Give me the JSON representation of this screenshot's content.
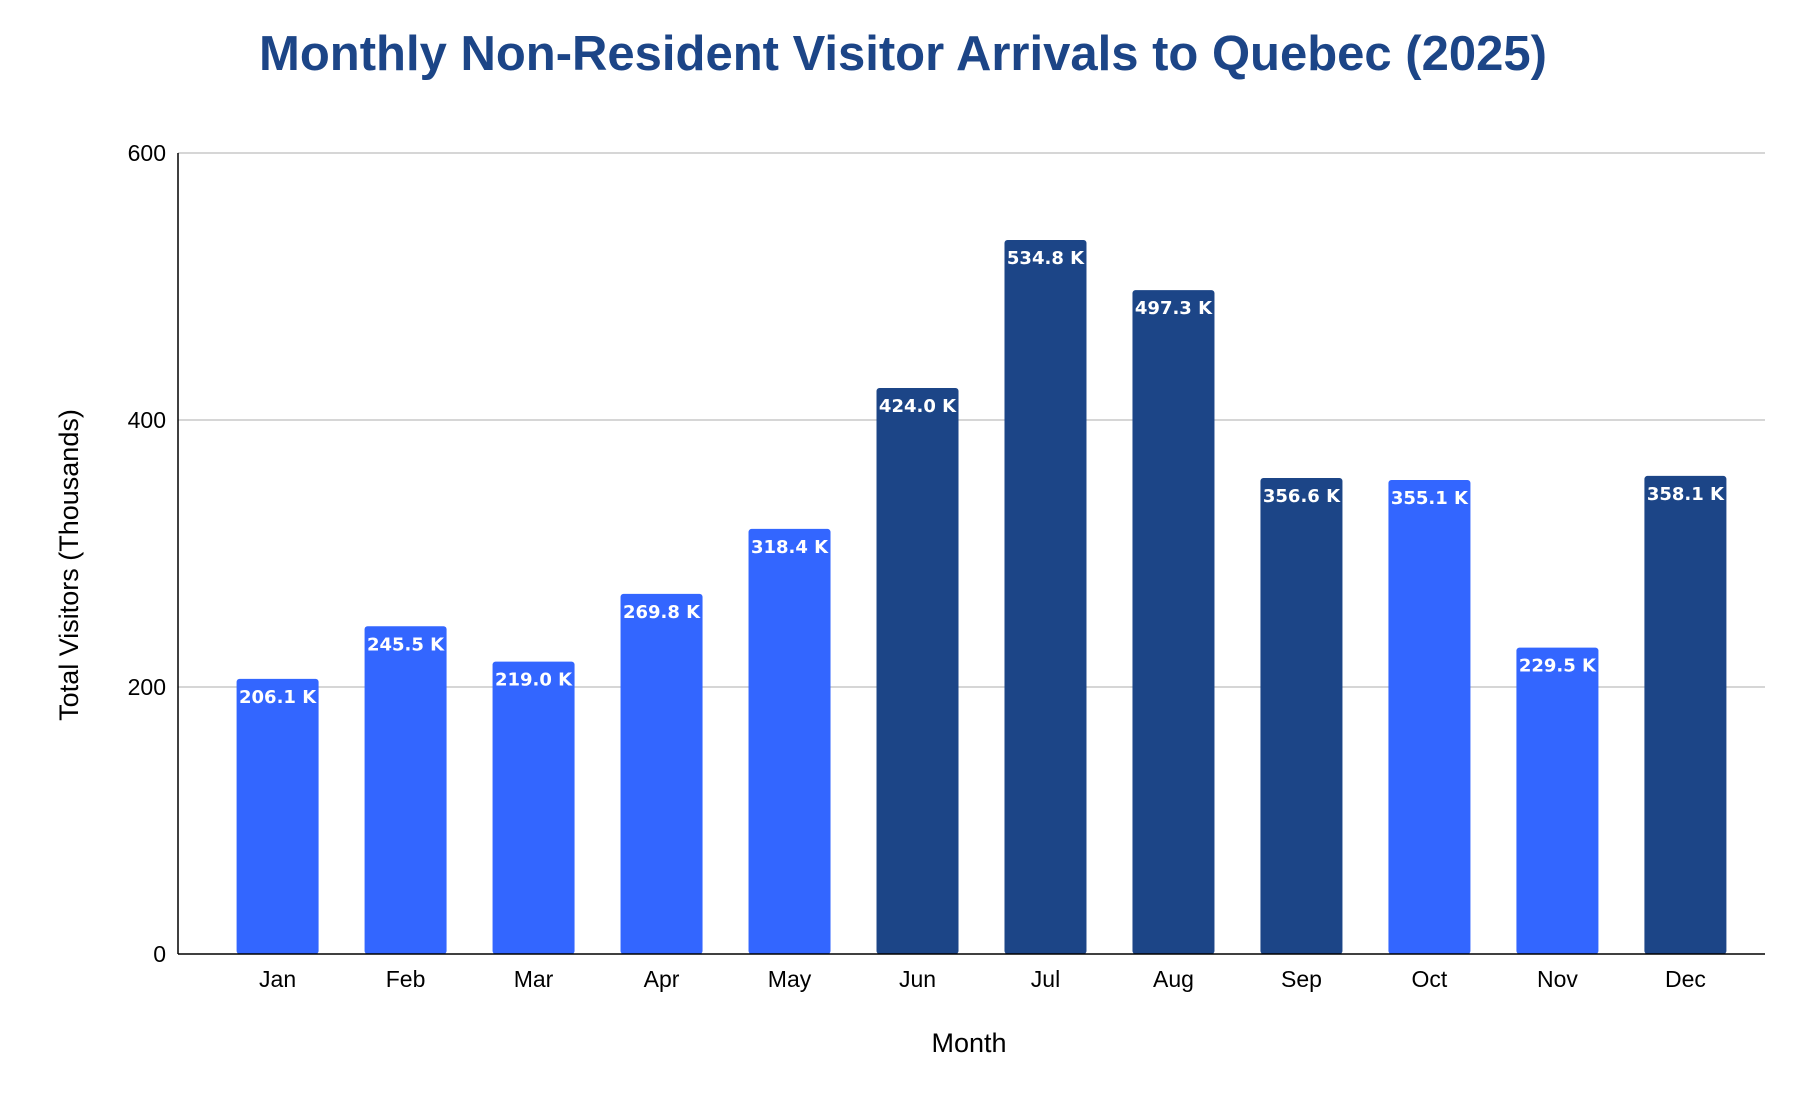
{
  "chart_data": {
    "type": "bar",
    "title": "Monthly Non-Resident Visitor Arrivals to Quebec (2025)",
    "xlabel": "Month",
    "ylabel": "Total Visitors (Thousands)",
    "categories": [
      "Jan",
      "Feb",
      "Mar",
      "Apr",
      "May",
      "Jun",
      "Jul",
      "Aug",
      "Sep",
      "Oct",
      "Nov",
      "Dec"
    ],
    "values": [
      206.1,
      245.5,
      219.0,
      269.8,
      318.4,
      424.0,
      534.8,
      497.3,
      356.6,
      355.1,
      229.5,
      358.1
    ],
    "data_labels": [
      "206.1 K",
      "245.5 K",
      "219.0 K",
      "269.8 K",
      "318.4 K",
      "424.0 K",
      "534.8 K",
      "497.3 K",
      "356.6 K",
      "355.1 K",
      "229.5 K",
      "358.1 K"
    ],
    "bar_colors": [
      "#3366ff",
      "#3366ff",
      "#3366ff",
      "#3366ff",
      "#3366ff",
      "#1c4587",
      "#1c4587",
      "#1c4587",
      "#1c4587",
      "#3366ff",
      "#3366ff",
      "#1c4587"
    ],
    "ylim": [
      0,
      600
    ],
    "yticks": [
      "0",
      "200",
      "400",
      "600"
    ],
    "ytick_values": [
      0,
      200,
      400,
      600
    ],
    "grid": true,
    "legend": "none",
    "colors": {
      "title": "#1c4587",
      "bar_light": "#3366ff",
      "bar_dark": "#1c4587",
      "gridline": "#c8c8c8",
      "axis": "#000000",
      "bar_label": "#ffffff"
    }
  }
}
